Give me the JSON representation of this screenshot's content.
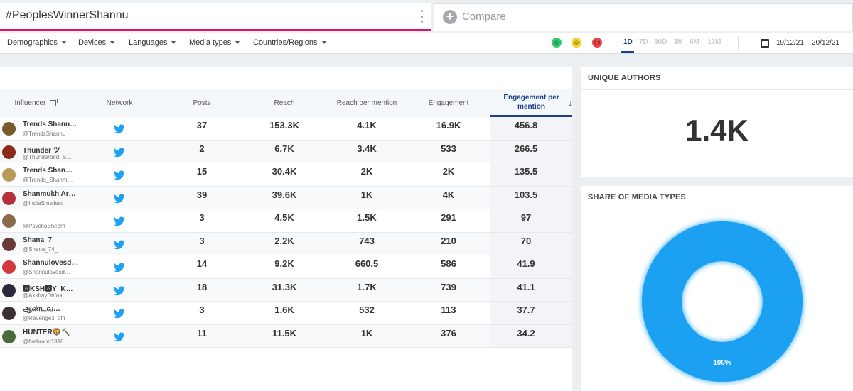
{
  "search": {
    "query": "#PeoplesWinnerShannu",
    "compare_label": "Compare"
  },
  "filters": [
    "Demographics",
    "Devices",
    "Languages",
    "Media types",
    "Countries/Regions"
  ],
  "sentiment": {
    "positive": {
      "color": "#2ecc71",
      "icon": "positive-face-icon"
    },
    "neutral": {
      "color": "#f5d327",
      "icon": "neutral-face-icon"
    },
    "negative": {
      "color": "#ef4545",
      "icon": "negative-face-icon"
    }
  },
  "ranges": [
    "1D",
    "7D",
    "30D",
    "3M",
    "6M",
    "13M"
  ],
  "active_range": "1D",
  "date_range": "19/12/21 – 20/12/21",
  "table": {
    "headers": {
      "influencer": "Influencer",
      "network": "Network",
      "posts": "Posts",
      "reach": "Reach",
      "reach_per_mention": "Reach per mention",
      "engagement": "Engagement",
      "engagement_per_mention_1": "Engagement per",
      "engagement_per_mention_2": "mention"
    },
    "rows": [
      {
        "name": "Trends Shann…",
        "handle": "@TrendsShannu",
        "posts": "37",
        "reach": "153.3K",
        "rpm": "4.1K",
        "eng": "16.9K",
        "epm": "456.8",
        "avatar": "#7a5a2a"
      },
      {
        "name": "Thunder ツ",
        "handle": "@Thunderbird_S…",
        "posts": "2",
        "reach": "6.7K",
        "rpm": "3.4K",
        "eng": "533",
        "epm": "266.5",
        "avatar": "#8a2a1a"
      },
      {
        "name": "Trends Shan…",
        "handle": "@Trends_Shanm…",
        "posts": "15",
        "reach": "30.4K",
        "rpm": "2K",
        "eng": "2K",
        "epm": "135.5",
        "avatar": "#b89a5a"
      },
      {
        "name": "Shanmukh Ar…",
        "handle": "@IndiaSmallest",
        "posts": "39",
        "reach": "39.6K",
        "rpm": "1K",
        "eng": "4K",
        "epm": "103.5",
        "avatar": "#b5303a"
      },
      {
        "name": "",
        "handle": "@PsychoBheem",
        "posts": "3",
        "reach": "4.5K",
        "rpm": "1.5K",
        "eng": "291",
        "epm": "97",
        "avatar": "#8a6a4a"
      },
      {
        "name": "Shana_7",
        "handle": "@Shana_74_",
        "posts": "3",
        "reach": "2.2K",
        "rpm": "743",
        "eng": "210",
        "epm": "70",
        "avatar": "#6a3a3a"
      },
      {
        "name": "Shannulovesd…",
        "handle": "@Shannulovesd…",
        "posts": "14",
        "reach": "9.2K",
        "rpm": "660.5",
        "eng": "586",
        "epm": "41.9",
        "avatar": "#d03a3a"
      },
      {
        "name": "🅰KSH🅰Y_K…",
        "handle": "@AkshayDhfaa",
        "posts": "18",
        "reach": "31.3K",
        "rpm": "1.7K",
        "eng": "739",
        "epm": "41.1",
        "avatar": "#2a2a3a"
      },
      {
        "name": "ஆண்டவ…",
        "handle": "@Revenge3_offi",
        "posts": "3",
        "reach": "1.6K",
        "rpm": "532",
        "eng": "113",
        "epm": "37.7",
        "avatar": "#3a3030"
      },
      {
        "name": "HUNTER🦁🔨",
        "handle": "@firebrand1818",
        "posts": "11",
        "reach": "11.5K",
        "rpm": "1K",
        "eng": "376",
        "epm": "34.2",
        "avatar": "#4a6a3a"
      }
    ]
  },
  "unique_authors": {
    "title": "UNIQUE AUTHORS",
    "value": "1.4K"
  },
  "media_types": {
    "title": "SHARE OF MEDIA TYPES",
    "chart_data": {
      "type": "pie",
      "categories": [
        "Twitter"
      ],
      "values": [
        100
      ],
      "labels": [
        "100%"
      ],
      "colors": [
        "#1ea1f2"
      ]
    }
  }
}
